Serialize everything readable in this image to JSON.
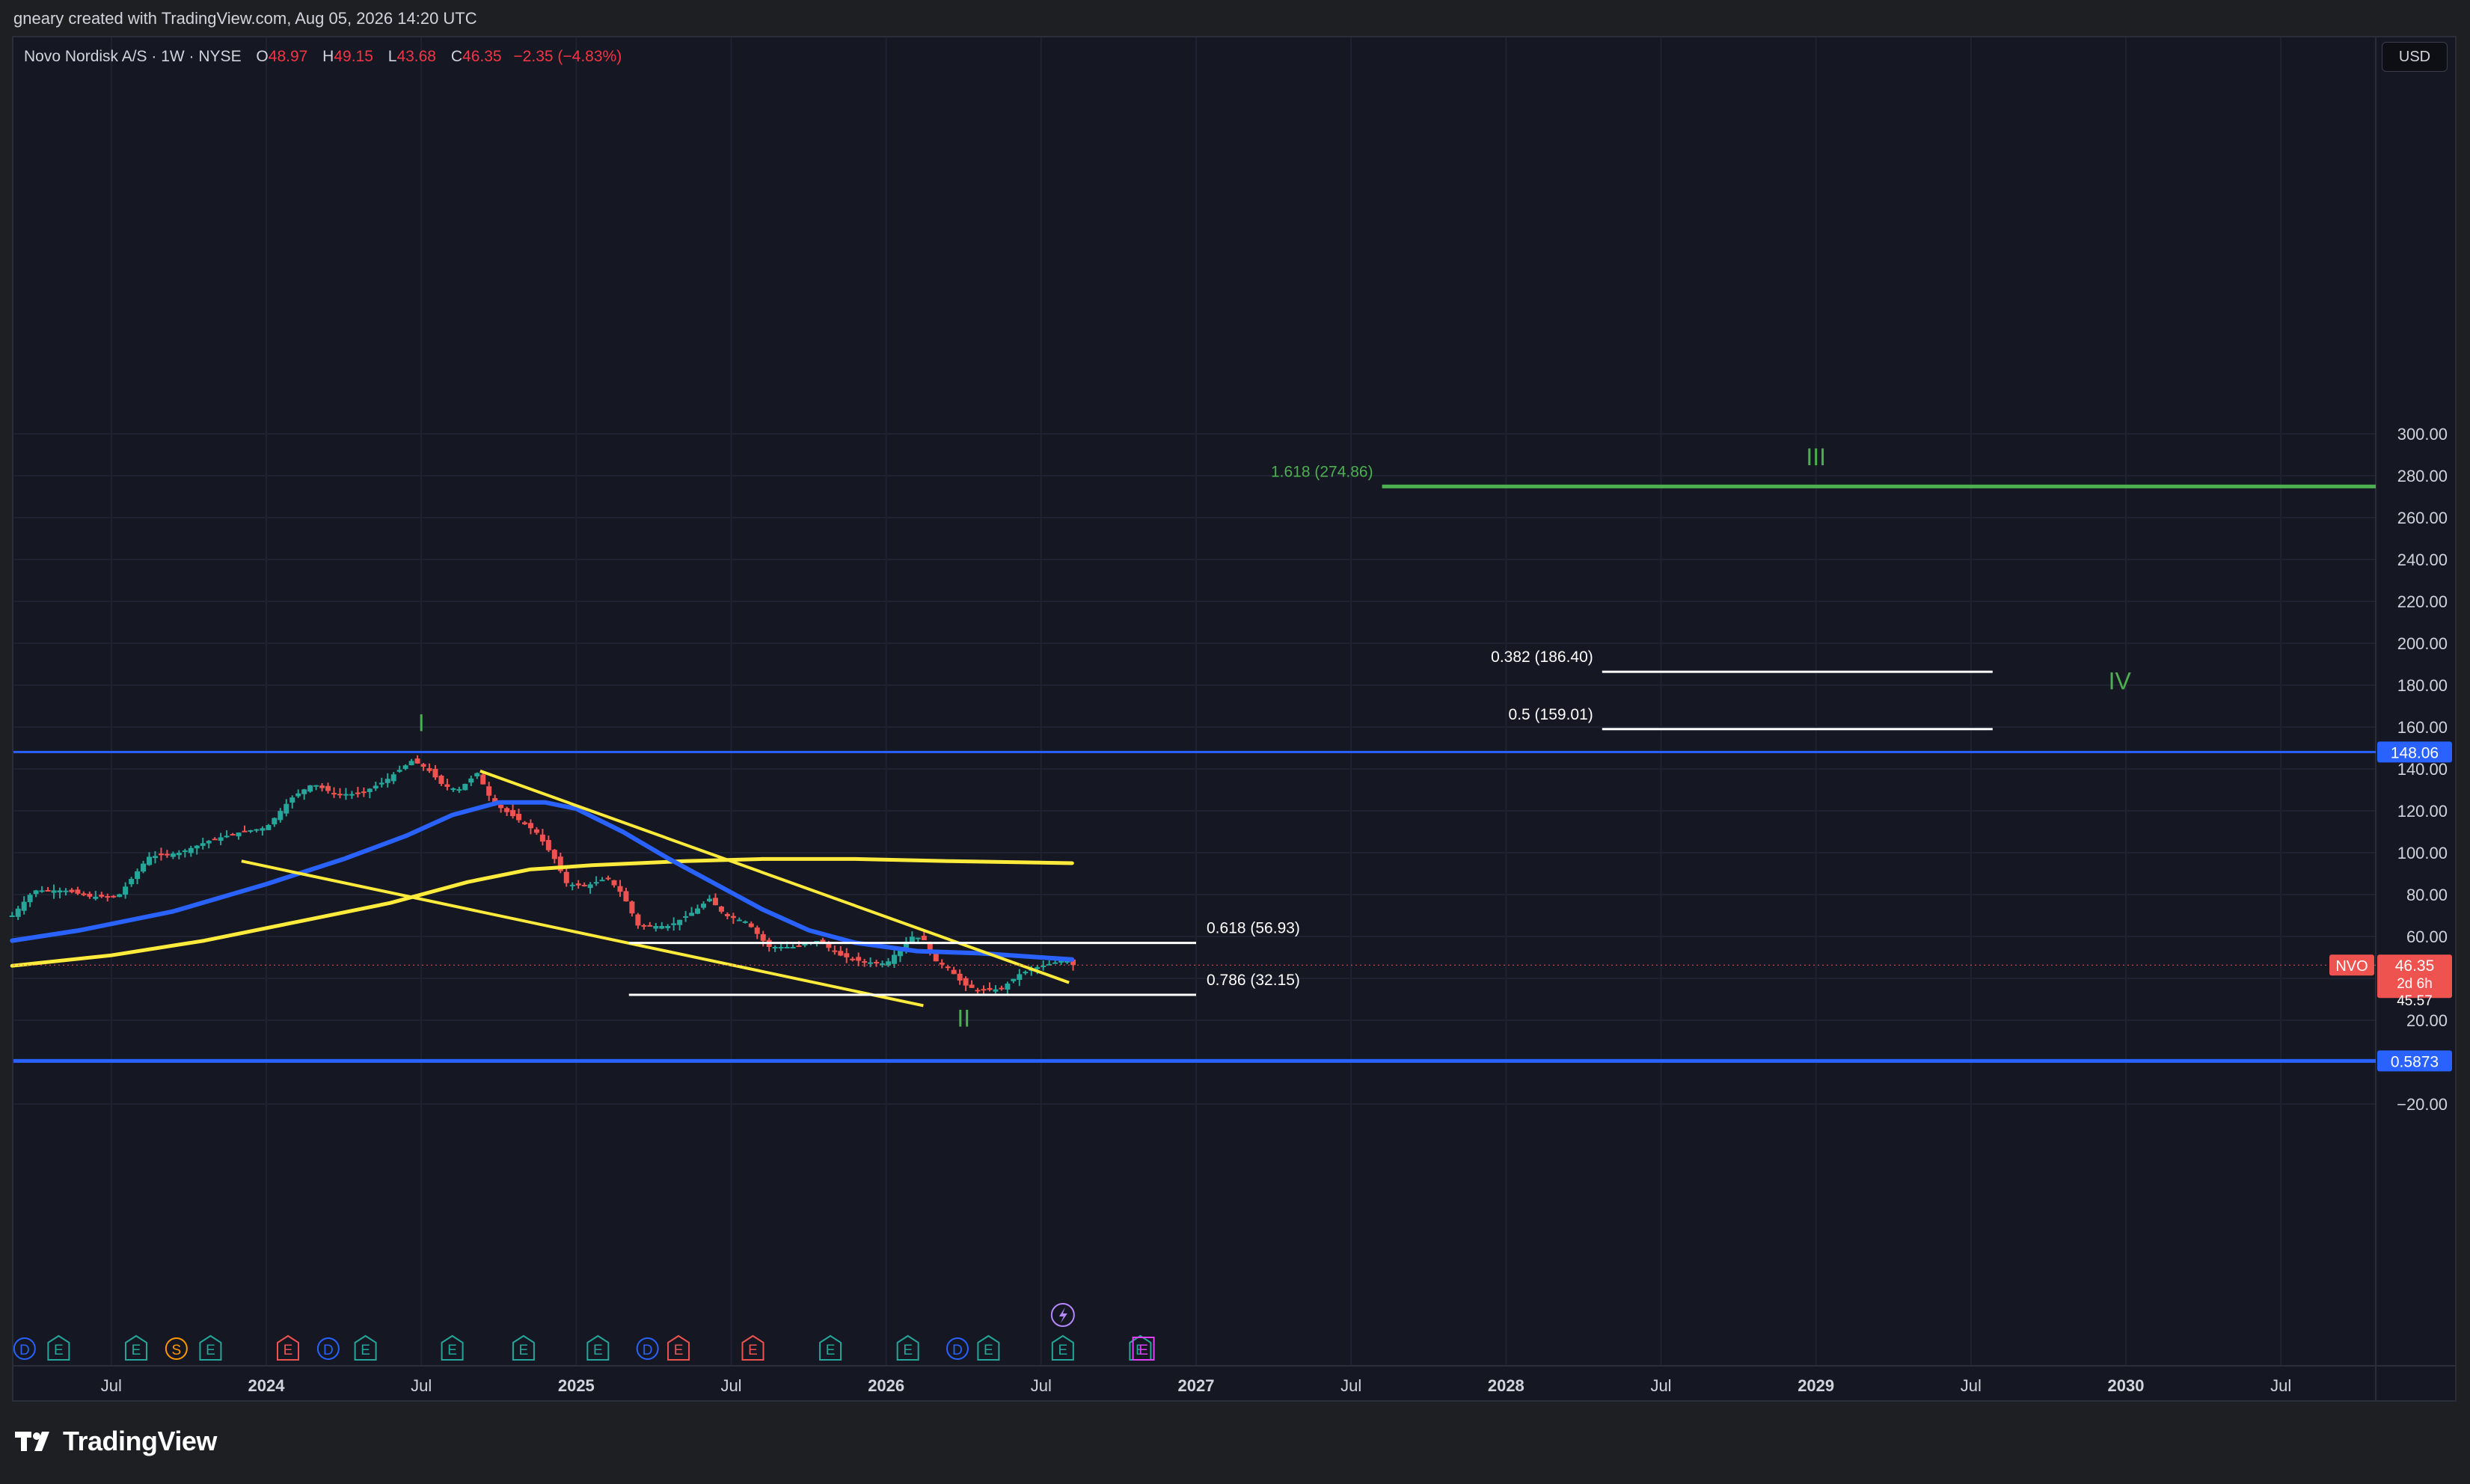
{
  "header": {
    "credit": "gneary created with TradingView.com, Aug 05, 2026 14:20 UTC"
  },
  "legend": {
    "symbol": "Novo Nordisk A/S · 1W · NYSE",
    "open_label": "O",
    "open": "48.97",
    "high_label": "H",
    "high": "49.15",
    "low_label": "L",
    "low": "43.68",
    "close_label": "C",
    "close": "46.35",
    "change": "−2.35 (−4.83%)"
  },
  "currency_button": "USD",
  "footer": {
    "brand": "TradingView"
  },
  "chart_data": {
    "type": "candlestick",
    "symbol": "NVO",
    "interval": "1W",
    "ylim": [
      -40,
      310
    ],
    "y_ticks": [
      "300.00",
      "280.00",
      "260.00",
      "240.00",
      "220.00",
      "200.00",
      "180.00",
      "160.00",
      "140.00",
      "120.00",
      "100.00",
      "80.00",
      "60.00",
      "20.00",
      "−20.00"
    ],
    "y_tick_values": [
      300,
      280,
      260,
      240,
      220,
      200,
      180,
      160,
      140,
      120,
      100,
      80,
      60,
      20,
      -20
    ],
    "x_ticks": [
      {
        "label": "Jul",
        "t": 2023.5,
        "bold": false
      },
      {
        "label": "2024",
        "t": 2024.0,
        "bold": true
      },
      {
        "label": "Jul",
        "t": 2024.5,
        "bold": false
      },
      {
        "label": "2025",
        "t": 2025.0,
        "bold": true
      },
      {
        "label": "Jul",
        "t": 2025.5,
        "bold": false
      },
      {
        "label": "2026",
        "t": 2026.0,
        "bold": true
      },
      {
        "label": "Jul",
        "t": 2026.5,
        "bold": false
      },
      {
        "label": "2027",
        "t": 2027.0,
        "bold": true
      },
      {
        "label": "Jul",
        "t": 2027.5,
        "bold": false
      },
      {
        "label": "2028",
        "t": 2028.0,
        "bold": true
      },
      {
        "label": "Jul",
        "t": 2028.5,
        "bold": false
      },
      {
        "label": "2029",
        "t": 2029.0,
        "bold": true
      },
      {
        "label": "Jul",
        "t": 2029.5,
        "bold": false
      },
      {
        "label": "2030",
        "t": 2030.0,
        "bold": true
      },
      {
        "label": "Jul",
        "t": 2030.5,
        "bold": false
      }
    ],
    "price_path": [
      [
        2023.18,
        70
      ],
      [
        2023.25,
        82
      ],
      [
        2023.35,
        82
      ],
      [
        2023.43,
        79
      ],
      [
        2023.52,
        79
      ],
      [
        2023.62,
        98
      ],
      [
        2023.72,
        100
      ],
      [
        2023.82,
        106
      ],
      [
        2023.92,
        110
      ],
      [
        2024.0,
        112
      ],
      [
        2024.08,
        126
      ],
      [
        2024.15,
        133
      ],
      [
        2024.22,
        128
      ],
      [
        2024.3,
        128
      ],
      [
        2024.38,
        134
      ],
      [
        2024.47,
        144
      ],
      [
        2024.52,
        140
      ],
      [
        2024.57,
        132
      ],
      [
        2024.62,
        130
      ],
      [
        2024.68,
        138
      ],
      [
        2024.73,
        124
      ],
      [
        2024.8,
        117
      ],
      [
        2024.87,
        110
      ],
      [
        2024.93,
        97
      ],
      [
        2024.97,
        85
      ],
      [
        2025.03,
        84
      ],
      [
        2025.1,
        88
      ],
      [
        2025.15,
        80
      ],
      [
        2025.2,
        65
      ],
      [
        2025.3,
        65
      ],
      [
        2025.38,
        72
      ],
      [
        2025.43,
        78
      ],
      [
        2025.48,
        70
      ],
      [
        2025.55,
        67
      ],
      [
        2025.62,
        55
      ],
      [
        2025.7,
        55
      ],
      [
        2025.78,
        58
      ],
      [
        2025.85,
        51
      ],
      [
        2025.92,
        48
      ],
      [
        2026.0,
        47
      ],
      [
        2026.08,
        60
      ],
      [
        2026.12,
        59
      ],
      [
        2026.15,
        49
      ],
      [
        2026.2,
        45
      ],
      [
        2026.25,
        37
      ],
      [
        2026.3,
        34
      ],
      [
        2026.37,
        35
      ],
      [
        2026.43,
        42
      ],
      [
        2026.48,
        45
      ],
      [
        2026.53,
        47
      ],
      [
        2026.58,
        49
      ],
      [
        2026.63,
        48
      ],
      [
        2026.6,
        46.35
      ]
    ],
    "candle_start": 2023.18,
    "candle_end": 2026.6,
    "sma_blue": [
      [
        2023.18,
        58
      ],
      [
        2023.4,
        63
      ],
      [
        2023.7,
        72
      ],
      [
        2024.0,
        85
      ],
      [
        2024.25,
        97
      ],
      [
        2024.45,
        108
      ],
      [
        2024.6,
        118
      ],
      [
        2024.75,
        124
      ],
      [
        2024.9,
        124
      ],
      [
        2025.0,
        121
      ],
      [
        2025.15,
        110
      ],
      [
        2025.3,
        97
      ],
      [
        2025.45,
        85
      ],
      [
        2025.6,
        73
      ],
      [
        2025.75,
        63
      ],
      [
        2025.9,
        57
      ],
      [
        2026.1,
        53
      ],
      [
        2026.3,
        52
      ],
      [
        2026.5,
        50
      ],
      [
        2026.6,
        49
      ]
    ],
    "sma_yellow": [
      [
        2023.18,
        46
      ],
      [
        2023.5,
        51
      ],
      [
        2023.8,
        58
      ],
      [
        2024.1,
        67
      ],
      [
        2024.4,
        76
      ],
      [
        2024.65,
        86
      ],
      [
        2024.85,
        92
      ],
      [
        2025.05,
        94
      ],
      [
        2025.35,
        96
      ],
      [
        2025.6,
        97
      ],
      [
        2025.9,
        97
      ],
      [
        2026.2,
        96
      ],
      [
        2026.6,
        95
      ]
    ],
    "trendlines": [
      {
        "from": [
          2023.92,
          96
        ],
        "to": [
          2026.12,
          27
        ]
      },
      {
        "from": [
          2024.69,
          139
        ],
        "to": [
          2026.59,
          38
        ]
      }
    ],
    "hlines": [
      {
        "value": 148.06,
        "label": "148.06",
        "color": "#2962ff",
        "width": 3
      },
      {
        "value": 0.5873,
        "label": "0.5873",
        "color": "#2962ff",
        "width": 5
      }
    ],
    "fib_levels": [
      {
        "label": "1.618 (274.86)",
        "value": 274.86,
        "from": 2027.6,
        "to": 2031.32,
        "color": "#4caf50"
      },
      {
        "label": "0.382 (186.40)",
        "value": 186.4,
        "from": 2028.31,
        "to": 2029.57,
        "color": "#ffffff"
      },
      {
        "label": "0.5 (159.01)",
        "value": 159.01,
        "from": 2028.31,
        "to": 2029.57,
        "color": "#ffffff"
      },
      {
        "label": "0.618 (56.93)",
        "value": 56.93,
        "from": 2025.17,
        "to": 2027.0,
        "color": "#ffffff"
      },
      {
        "label": "0.786 (32.15)",
        "value": 32.15,
        "from": 2025.17,
        "to": 2027.0,
        "color": "#ffffff"
      }
    ],
    "wave_labels": [
      {
        "label": "I",
        "t": 2024.5,
        "value": 158
      },
      {
        "label": "II",
        "t": 2026.25,
        "value": 17
      },
      {
        "label": "III",
        "t": 2029.0,
        "value": 285
      },
      {
        "label": "IV",
        "t": 2029.98,
        "value": 178
      }
    ],
    "price_badges": [
      {
        "label": "NVO",
        "value": "46.35",
        "sub": "2d 6h",
        "low": "45.57"
      }
    ],
    "events": [
      {
        "t": 2023.22,
        "k": "D"
      },
      {
        "t": 2023.33,
        "k": "E"
      },
      {
        "t": 2023.58,
        "k": "E"
      },
      {
        "t": 2023.71,
        "k": "S"
      },
      {
        "t": 2023.82,
        "k": "E"
      },
      {
        "t": 2024.07,
        "k": "E"
      },
      {
        "t": 2024.2,
        "k": "D"
      },
      {
        "t": 2024.32,
        "k": "E"
      },
      {
        "t": 2024.6,
        "k": "E"
      },
      {
        "t": 2024.83,
        "k": "E"
      },
      {
        "t": 2025.07,
        "k": "E"
      },
      {
        "t": 2025.23,
        "k": "D"
      },
      {
        "t": 2025.33,
        "k": "E"
      },
      {
        "t": 2025.57,
        "k": "E"
      },
      {
        "t": 2025.82,
        "k": "E"
      },
      {
        "t": 2026.07,
        "k": "E"
      },
      {
        "t": 2026.23,
        "k": "D"
      },
      {
        "t": 2026.33,
        "k": "E"
      },
      {
        "t": 2026.57,
        "k": "E"
      },
      {
        "t": 2026.82,
        "k": "E"
      }
    ]
  }
}
